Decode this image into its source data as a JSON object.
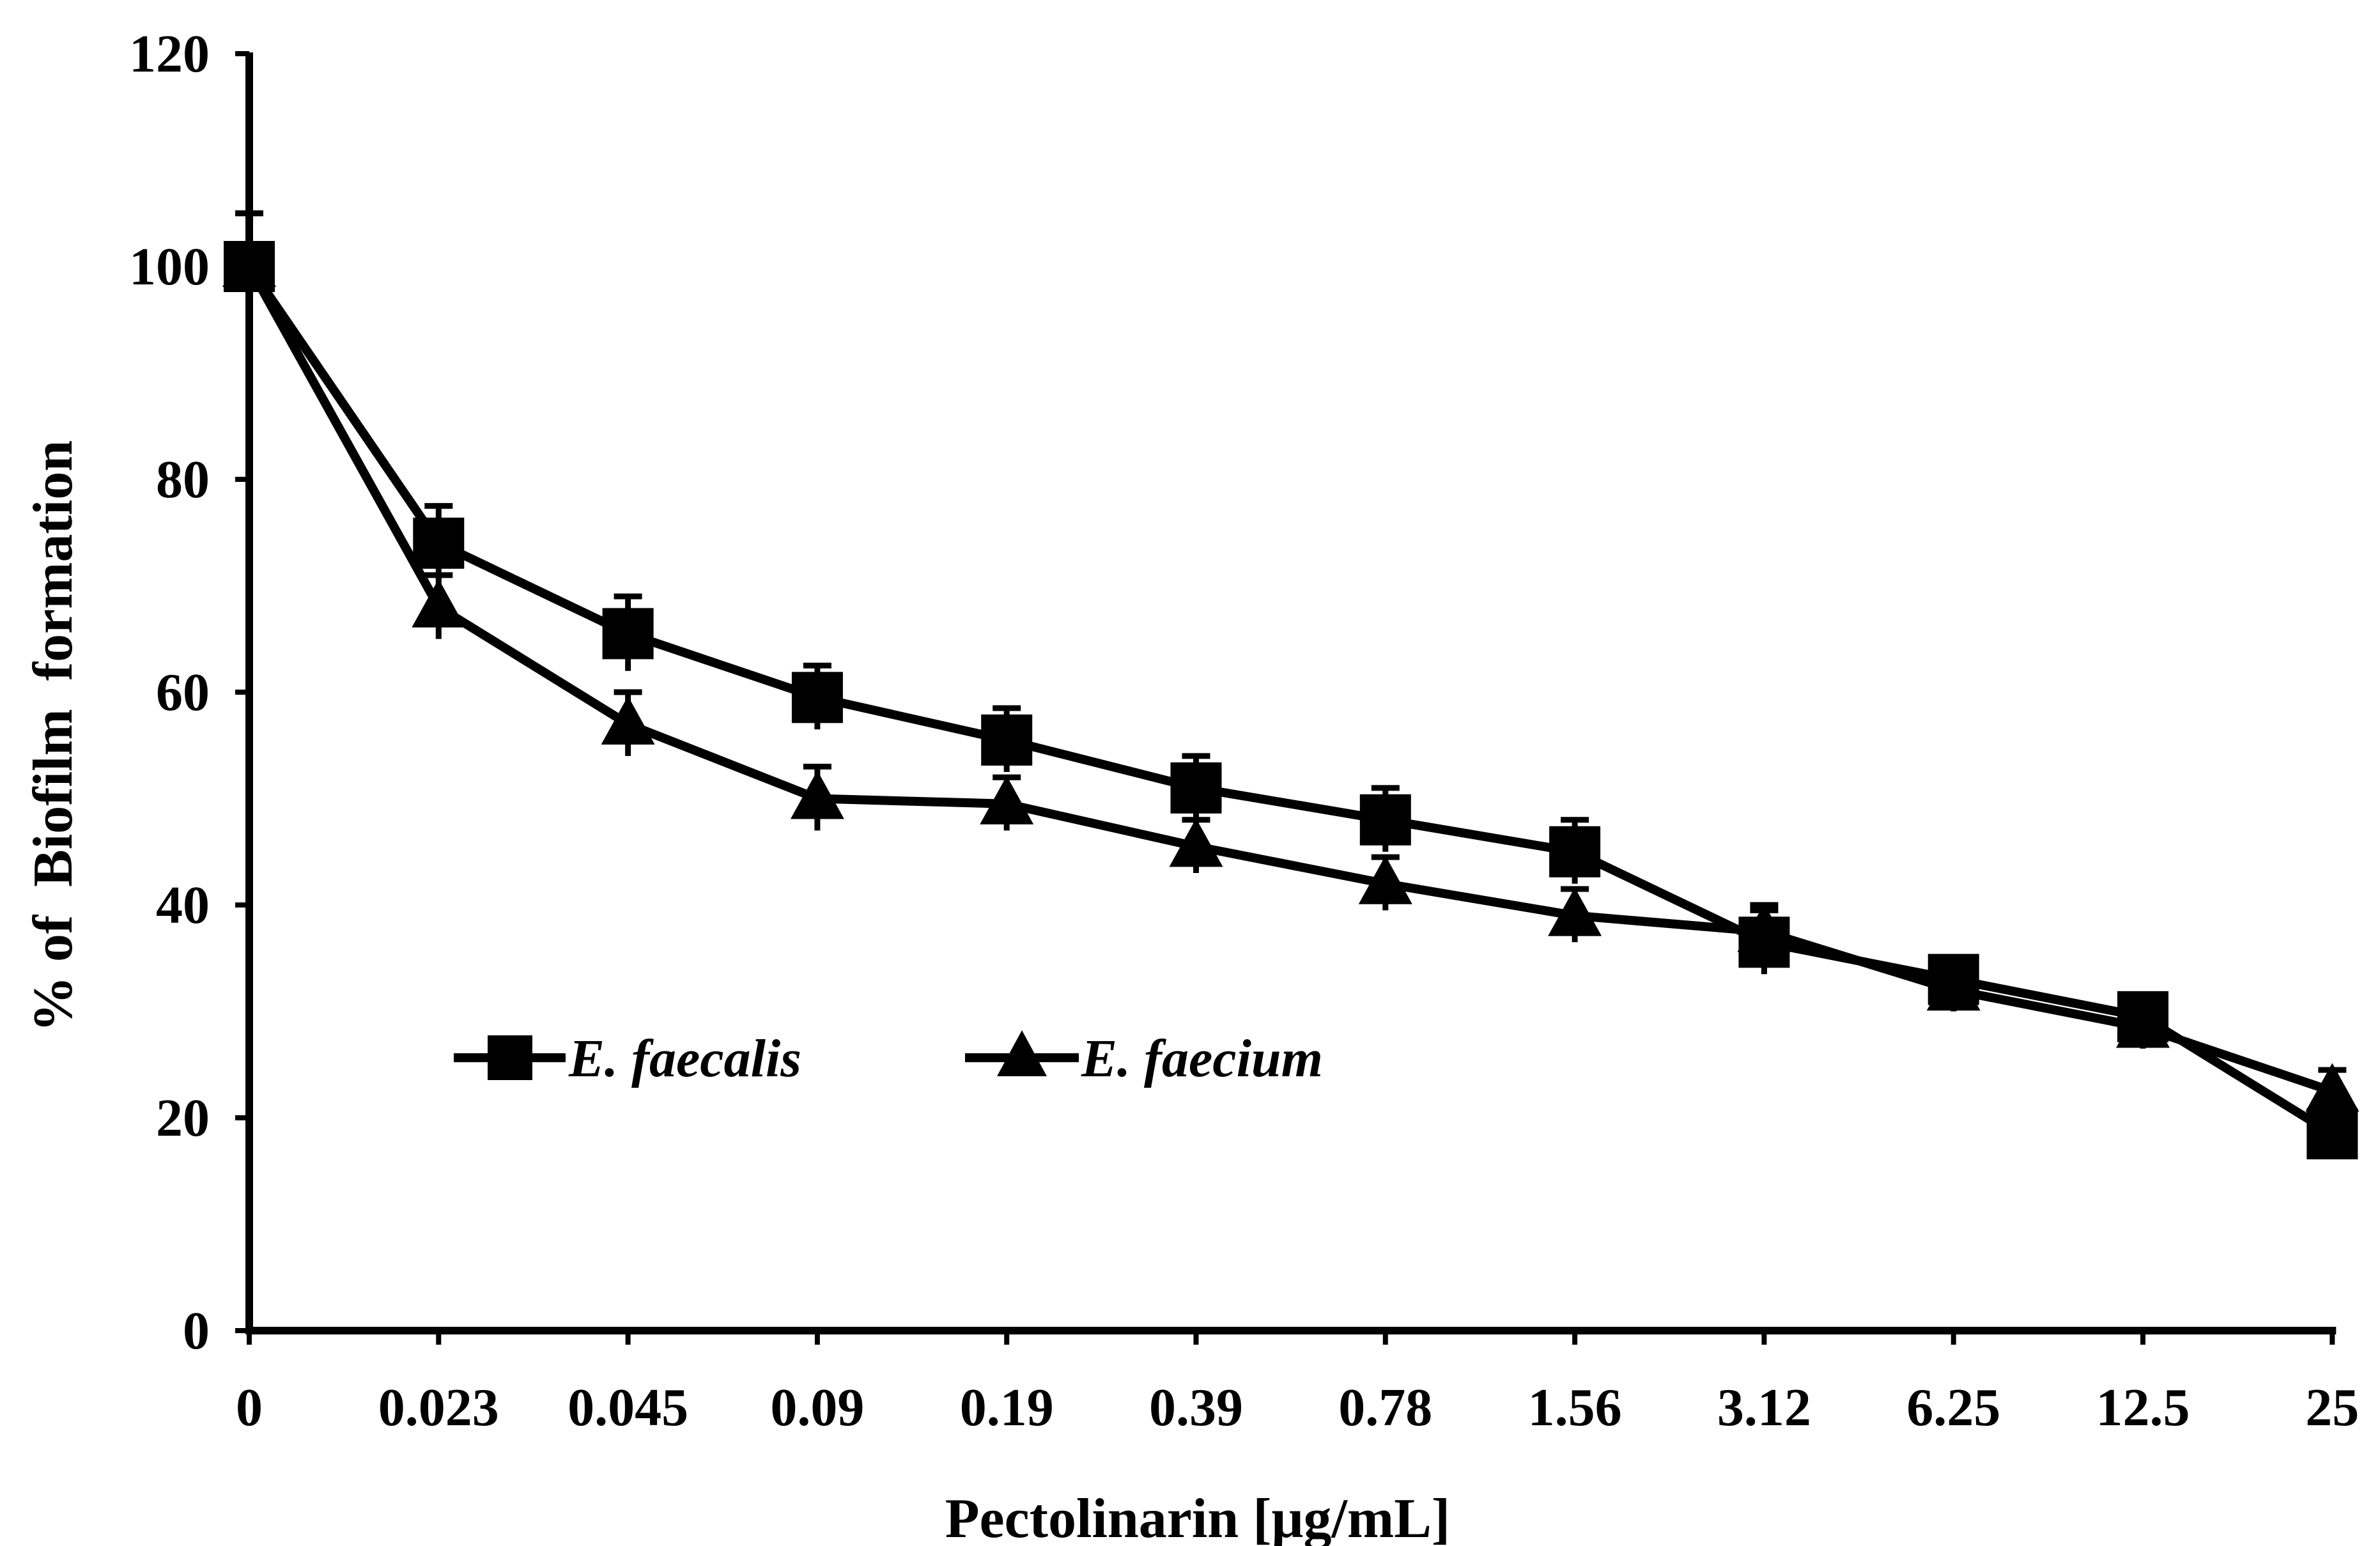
{
  "chart_data": {
    "type": "line",
    "title": "",
    "xlabel": "Pectolinarin [μg/mL]",
    "ylabel": "% of  Biofilm  formation",
    "categories": [
      "0",
      "0.023",
      "0.045",
      "0.09",
      "0.19",
      "0.39",
      "0.78",
      "1.56",
      "3.12",
      "6.25",
      "12.5",
      "25"
    ],
    "ylim": [
      0,
      120
    ],
    "yticks": [
      "0",
      "20",
      "40",
      "60",
      "80",
      "100",
      "120"
    ],
    "grid": false,
    "legend_position": "lower-left",
    "series": [
      {
        "name": "E. faecalis",
        "marker": "square",
        "values": [
          100,
          74,
          65.5,
          59.5,
          55.5,
          51,
          48,
          45,
          36.5,
          33,
          29.5,
          18.5
        ],
        "errors": [
          5,
          3.5,
          3.5,
          3,
          3,
          3,
          3,
          3,
          3,
          2,
          2,
          2
        ]
      },
      {
        "name": "E. faecium",
        "marker": "triangle",
        "values": [
          100,
          68,
          57,
          50,
          49.5,
          45.5,
          42,
          39,
          37.5,
          32,
          28.5,
          22.5
        ],
        "errors": [
          5,
          3,
          3,
          3,
          2.5,
          2.5,
          2.5,
          2.5,
          2.5,
          2,
          2,
          2
        ]
      }
    ],
    "colors": {
      "line": "#000000",
      "axis": "#000000",
      "background": "#ffffff"
    }
  }
}
